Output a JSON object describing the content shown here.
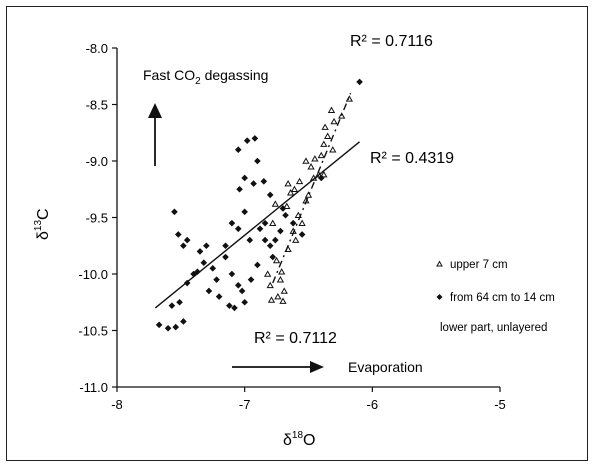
{
  "chart_data": {
    "type": "scatter",
    "xlabel": {
      "main": "δ",
      "sup": "18",
      "tail": "O"
    },
    "ylabel": {
      "main": "δ",
      "sup": "13",
      "tail": "C"
    },
    "xlim": [
      -8,
      -5
    ],
    "ylim": [
      -11.0,
      -8.0
    ],
    "x_ticks": [
      "-8",
      "-7",
      "-6",
      "-5"
    ],
    "y_ticks": [
      "-8.0",
      "-8.5",
      "-9.0",
      "-9.5",
      "-10.0",
      "-10.5",
      "-11.0"
    ],
    "grid": false,
    "legend_position": "right",
    "series": [
      {
        "name": "upper 7 cm",
        "marker": "triangle-open",
        "points": [
          [
            -6.79,
            -10.23
          ],
          [
            -6.74,
            -10.2
          ],
          [
            -6.7,
            -10.24
          ],
          [
            -6.69,
            -10.15
          ],
          [
            -6.8,
            -10.1
          ],
          [
            -6.72,
            -10.05
          ],
          [
            -6.82,
            -10.0
          ],
          [
            -6.71,
            -9.98
          ],
          [
            -6.75,
            -9.88
          ],
          [
            -6.66,
            -9.78
          ],
          [
            -6.6,
            -9.7
          ],
          [
            -6.62,
            -9.62
          ],
          [
            -6.55,
            -9.55
          ],
          [
            -6.78,
            -9.55
          ],
          [
            -6.58,
            -9.48
          ],
          [
            -6.67,
            -9.4
          ],
          [
            -6.76,
            -9.38
          ],
          [
            -6.52,
            -9.35
          ],
          [
            -6.5,
            -9.3
          ],
          [
            -6.61,
            -9.25
          ],
          [
            -6.66,
            -9.2
          ],
          [
            -6.57,
            -9.18
          ],
          [
            -6.46,
            -9.15
          ],
          [
            -6.38,
            -9.12
          ],
          [
            -6.48,
            -9.05
          ],
          [
            -6.45,
            -8.98
          ],
          [
            -6.4,
            -8.95
          ],
          [
            -6.38,
            -8.85
          ],
          [
            -6.31,
            -8.9
          ],
          [
            -6.35,
            -8.78
          ],
          [
            -6.37,
            -8.7
          ],
          [
            -6.32,
            -8.55
          ],
          [
            -6.24,
            -8.6
          ],
          [
            -6.3,
            -8.65
          ],
          [
            -6.18,
            -8.45
          ],
          [
            -6.42,
            -9.12
          ],
          [
            -6.52,
            -9.0
          ],
          [
            -6.64,
            -9.28
          ]
        ]
      },
      {
        "name": "from 64 cm to 14 cm",
        "marker": "diamond-filled",
        "points": [
          [
            -7.67,
            -10.45
          ],
          [
            -7.6,
            -10.48
          ],
          [
            -7.54,
            -10.47
          ],
          [
            -7.48,
            -10.42
          ],
          [
            -7.51,
            -10.25
          ],
          [
            -7.57,
            -10.28
          ],
          [
            -7.45,
            -10.08
          ],
          [
            -7.4,
            -10.0
          ],
          [
            -7.48,
            -9.75
          ],
          [
            -7.45,
            -9.7
          ],
          [
            -7.52,
            -9.65
          ],
          [
            -7.55,
            -9.45
          ],
          [
            -7.35,
            -9.8
          ],
          [
            -7.3,
            -9.75
          ],
          [
            -7.37,
            -9.98
          ],
          [
            -7.32,
            -9.9
          ],
          [
            -7.25,
            -9.95
          ],
          [
            -7.22,
            -10.05
          ],
          [
            -7.28,
            -10.15
          ],
          [
            -7.2,
            -10.2
          ],
          [
            -7.15,
            -9.85
          ],
          [
            -7.1,
            -10.0
          ],
          [
            -7.05,
            -10.1
          ],
          [
            -7.02,
            -10.15
          ],
          [
            -7.08,
            -10.3
          ],
          [
            -7.12,
            -10.28
          ],
          [
            -7.0,
            -10.25
          ],
          [
            -6.95,
            -10.05
          ],
          [
            -6.9,
            -9.92
          ],
          [
            -6.96,
            -9.7
          ],
          [
            -6.88,
            -9.6
          ],
          [
            -6.84,
            -9.55
          ],
          [
            -6.8,
            -9.75
          ],
          [
            -6.84,
            -9.7
          ],
          [
            -6.76,
            -9.7
          ],
          [
            -6.72,
            -9.62
          ],
          [
            -6.68,
            -9.48
          ],
          [
            -7.05,
            -9.6
          ],
          [
            -7.1,
            -9.55
          ],
          [
            -7.0,
            -9.45
          ],
          [
            -7.04,
            -9.25
          ],
          [
            -7.0,
            -9.15
          ],
          [
            -6.93,
            -9.2
          ],
          [
            -6.85,
            -9.18
          ],
          [
            -6.9,
            -9.0
          ],
          [
            -6.98,
            -8.82
          ],
          [
            -6.92,
            -8.8
          ],
          [
            -7.05,
            -8.9
          ],
          [
            -6.8,
            -9.3
          ],
          [
            -6.7,
            -9.42
          ],
          [
            -6.62,
            -9.55
          ],
          [
            -6.55,
            -9.65
          ],
          [
            -6.4,
            -9.15
          ],
          [
            -6.1,
            -8.3
          ],
          [
            -7.15,
            -9.75
          ],
          [
            -6.78,
            -9.85
          ]
        ]
      }
    ],
    "trendlines": [
      {
        "x": [
          -7.7,
          -6.1
        ],
        "y": [
          -10.3,
          -8.83
        ],
        "style": "solid"
      },
      {
        "x": [
          -6.78,
          -6.17
        ],
        "y": [
          -10.08,
          -8.4
        ],
        "style": "dashed"
      }
    ],
    "annotations": {
      "r2_top": "R² = 0.7116",
      "r2_mid": "R² = 0.4319",
      "r2_bottom": "R² = 0.7112",
      "fast_degassing": {
        "pre": "Fast CO",
        "sub": "2",
        "post": " degassing"
      },
      "evaporation": "Evaporation"
    },
    "legend": {
      "upper": "upper 7 cm",
      "lower": "from 64 cm to 14 cm",
      "note": "lower part, unlayered"
    }
  }
}
